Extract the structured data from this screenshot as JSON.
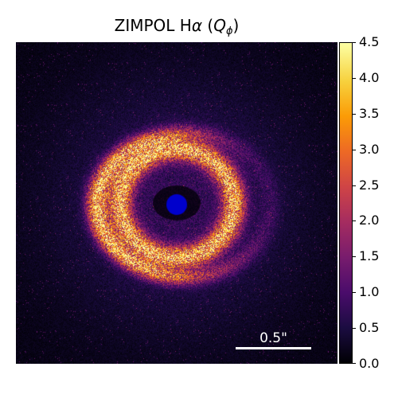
{
  "figure": {
    "title_main": "ZIMPOL H",
    "title_alpha": "α",
    "title_paren_open": " (",
    "title_Q": "Q",
    "title_phi": "ϕ",
    "title_paren_close": ")"
  },
  "scale_bar": {
    "label": "0.5\""
  },
  "colorbar": {
    "colormap": "inferno",
    "min": 0.0,
    "max": 4.5,
    "ticks": [
      "0.0",
      "0.5",
      "1.0",
      "1.5",
      "2.0",
      "2.5",
      "3.0",
      "3.5",
      "4.0",
      "4.5"
    ]
  },
  "colors": {
    "coronagraph_mask": "#0000cc",
    "background": "#000004",
    "scale_bar": "#ffffff"
  }
}
